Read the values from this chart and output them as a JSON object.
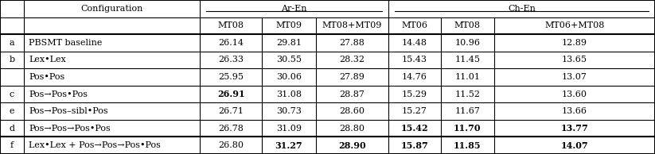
{
  "figsize": [
    8.23,
    1.94
  ],
  "dpi": 100,
  "rows": [
    {
      "label": "a",
      "config": "PBSMT baseline",
      "vals": [
        "26.14",
        "29.81",
        "27.88",
        "14.48",
        "10.96",
        "12.89"
      ],
      "bold": []
    },
    {
      "label": "b",
      "config": "Lex•Lex",
      "vals": [
        "26.33",
        "30.55",
        "28.32",
        "15.43",
        "11.45",
        "13.65"
      ],
      "bold": []
    },
    {
      "label": "",
      "config": "Pos•Pos",
      "vals": [
        "25.95",
        "30.06",
        "27.89",
        "14.76",
        "11.01",
        "13.07"
      ],
      "bold": []
    },
    {
      "label": "c",
      "config": "Pos→Pos•Pos",
      "vals": [
        "26.91",
        "31.08",
        "28.87",
        "15.29",
        "11.52",
        "13.60"
      ],
      "bold": [
        0
      ]
    },
    {
      "label": "e",
      "config": "Pos→Pos–sibl•Pos",
      "vals": [
        "26.71",
        "30.73",
        "28.60",
        "15.27",
        "11.67",
        "13.66"
      ],
      "bold": []
    },
    {
      "label": "d",
      "config": "Pos→Pos→Pos•Pos",
      "vals": [
        "26.78",
        "31.09",
        "28.80",
        "15.42",
        "11.70",
        "13.77"
      ],
      "bold": [
        3,
        4,
        5
      ]
    },
    {
      "label": "f",
      "config": "Lex•Lex + Pos→Pos→Pos•Pos",
      "vals": [
        "26.80",
        "31.27",
        "28.90",
        "15.87",
        "11.85",
        "14.07"
      ],
      "bold": [
        1,
        2,
        3,
        4,
        5
      ]
    }
  ],
  "subcols": [
    "MT08",
    "MT09",
    "MT08+MT09",
    "MT06",
    "MT08",
    "MT06+MT08"
  ],
  "lw_thick": 1.5,
  "lw_thin": 0.8,
  "fs": 8.0
}
